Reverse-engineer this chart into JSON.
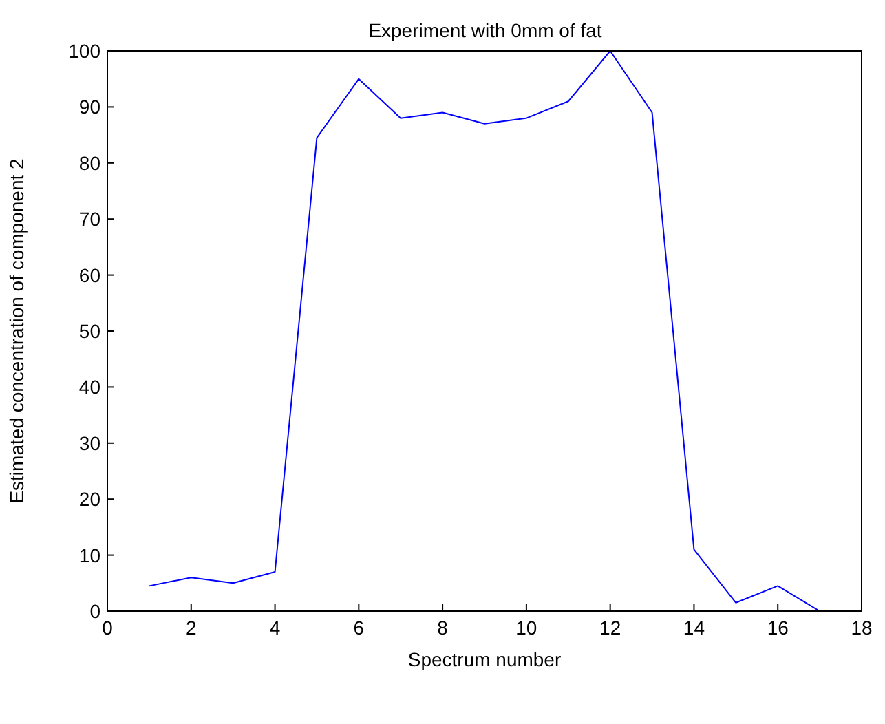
{
  "chart_data": {
    "type": "line",
    "title": "Experiment with 0mm of fat",
    "xlabel": "Spectrum number",
    "ylabel": "Estimated concentration of component 2",
    "x": [
      1,
      2,
      3,
      4,
      5,
      6,
      7,
      8,
      9,
      10,
      11,
      12,
      13,
      14,
      15,
      16,
      17
    ],
    "series": [
      {
        "color": "#0000ff",
        "values": [
          4.5,
          6,
          5,
          7,
          84.5,
          95,
          88,
          89,
          87,
          88,
          91,
          100,
          89,
          11,
          1.5,
          4.5,
          0
        ]
      }
    ],
    "xlim": [
      0,
      18
    ],
    "xticks": [
      0,
      2,
      4,
      6,
      8,
      10,
      12,
      14,
      16,
      18
    ],
    "ylim": [
      0,
      100
    ],
    "yticks": [
      0,
      10,
      20,
      30,
      40,
      50,
      60,
      70,
      80,
      90,
      100
    ],
    "grid": false,
    "legend": false,
    "marker": "none",
    "line_style": "solid"
  }
}
